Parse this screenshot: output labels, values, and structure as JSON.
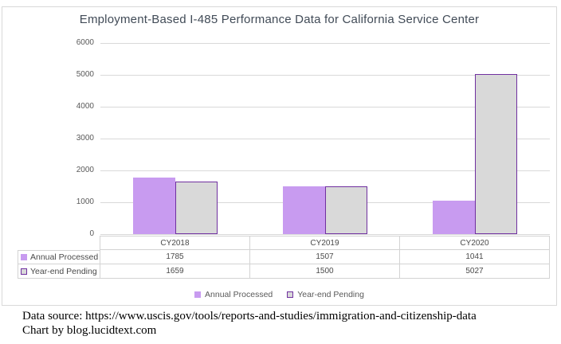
{
  "title": "Employment-Based I-485 Performance Data for California Service Center",
  "chart_data": {
    "type": "bar",
    "categories": [
      "CY2018",
      "CY2019",
      "CY2020"
    ],
    "series": [
      {
        "name": "Annual Processed",
        "values": [
          1785,
          1507,
          1041
        ],
        "fill": "#c89bf0",
        "border": null
      },
      {
        "name": "Year-end Pending",
        "values": [
          1659,
          1500,
          5027
        ],
        "fill": "#d9d9d9",
        "border": "#7030a0"
      }
    ],
    "ylim": [
      0,
      6000
    ],
    "yticks": [
      0,
      1000,
      2000,
      3000,
      4000,
      5000,
      6000
    ],
    "grid": true,
    "legend_position": "bottom",
    "data_table_shown": true
  },
  "colors": {
    "gridline": "#d9d9d9",
    "axis_text": "#595959",
    "title_text": "#414b57",
    "table_border": "#d3d3d3",
    "chart_border": "#d9d9d9"
  },
  "footer": {
    "line1": "Data source: https://www.uscis.gov/tools/reports-and-studies/immigration-and-citizenship-data",
    "line2": "Chart by blog.lucidtext.com"
  }
}
